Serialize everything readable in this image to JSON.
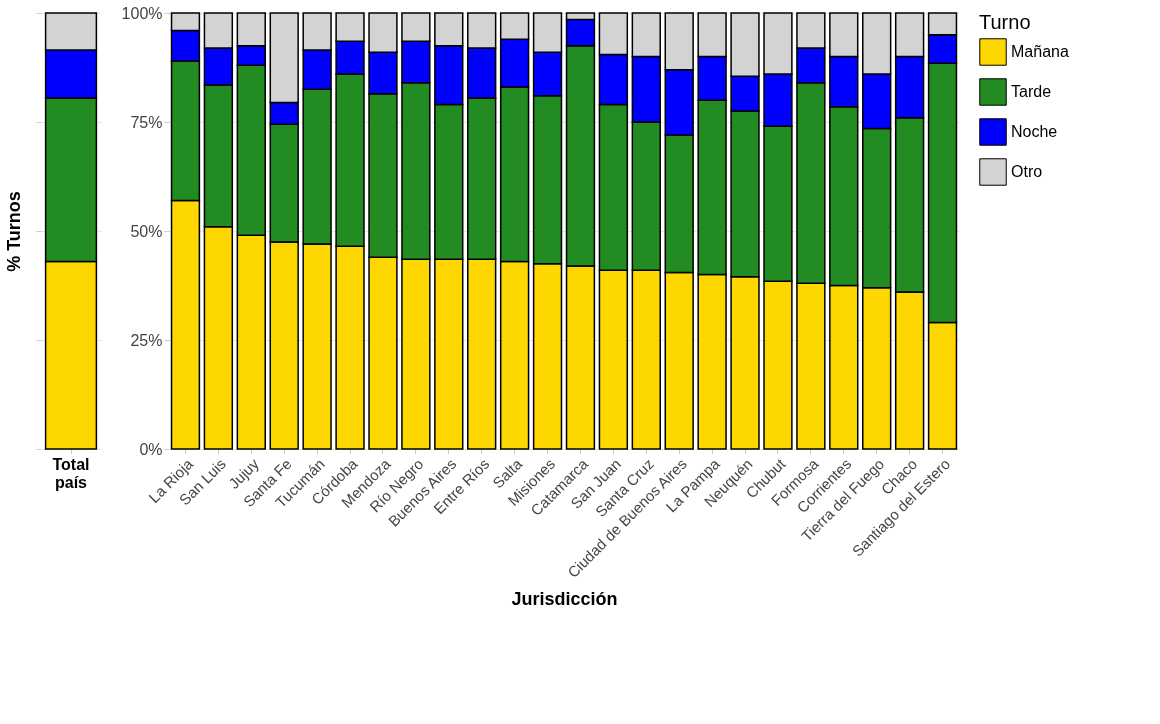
{
  "chart_data": [
    {
      "type": "bar",
      "stacked": true,
      "ylabel": "% Turnos",
      "categories": [
        "Total país"
      ],
      "ylim": [
        0,
        100
      ],
      "yticks": [
        0,
        25,
        50,
        75,
        100
      ],
      "tick_labels": "x",
      "grid": true,
      "series": [
        {
          "color": "#ffd700",
          "values": [
            43
          ]
        },
        {
          "color": "#228b22",
          "values": [
            37.5
          ]
        },
        {
          "color": "#0000ff",
          "values": [
            11
          ]
        },
        {
          "color": "#d3d3d3",
          "values": [
            8.5
          ]
        }
      ]
    },
    {
      "type": "bar",
      "stacked": true,
      "xlabel": "Jurisdicción",
      "legend_title": "Turno",
      "legend": "right",
      "grid": true,
      "categories": [
        "La Rioja",
        "San Luis",
        "Jujuy",
        "Santa Fe",
        "Tucumán",
        "Córdoba",
        "Mendoza",
        "Río Negro",
        "Buenos Aires",
        "Entre Ríos",
        "Salta",
        "Misiones",
        "Catamarca",
        "San Juan",
        "Santa Cruz",
        "Ciudad de Buenos Aires",
        "La Pampa",
        "Neuquén",
        "Chubut",
        "Formosa",
        "Corrientes",
        "Tierra del Fuego",
        "Chaco",
        "Santiago del Estero"
      ],
      "ylim": [
        0,
        100
      ],
      "yticks": [
        {
          "value": 0,
          "label": "0%"
        },
        {
          "value": 25,
          "label": "25%"
        },
        {
          "value": 50,
          "label": "50%"
        },
        {
          "value": 75,
          "label": "75%"
        },
        {
          "value": 100,
          "label": "100%"
        }
      ],
      "series": [
        {
          "name": "Mañana",
          "color": "#ffd700",
          "values": [
            57,
            51,
            49,
            47.5,
            47,
            46.5,
            44,
            43.5,
            43.5,
            43.5,
            43,
            42.5,
            42,
            41,
            41,
            40.5,
            40,
            39.5,
            38.5,
            38,
            37.5,
            37,
            36,
            29
          ]
        },
        {
          "name": "Tarde",
          "color": "#228b22",
          "values": [
            32,
            32.5,
            39,
            27,
            35.5,
            39.5,
            37.5,
            40.5,
            35.5,
            37,
            40,
            38.5,
            50.5,
            38,
            34,
            31.5,
            40,
            38,
            35.5,
            46,
            41,
            36.5,
            40,
            59.5
          ]
        },
        {
          "name": "Noche",
          "color": "#0000ff",
          "values": [
            7,
            8.5,
            4.5,
            5,
            9,
            7.5,
            9.5,
            9.5,
            13.5,
            11.5,
            11,
            10,
            6,
            11.5,
            15,
            15,
            10,
            8,
            12,
            8,
            11.5,
            12.5,
            14,
            6.5
          ]
        },
        {
          "name": "Otro",
          "color": "#d3d3d3",
          "values": [
            4,
            8,
            7.5,
            20.5,
            8.5,
            6.5,
            9,
            6.5,
            7.5,
            8,
            6,
            9,
            1.5,
            9.5,
            10,
            13,
            10,
            14.5,
            14,
            8,
            10,
            14,
            10,
            5
          ]
        }
      ]
    }
  ]
}
